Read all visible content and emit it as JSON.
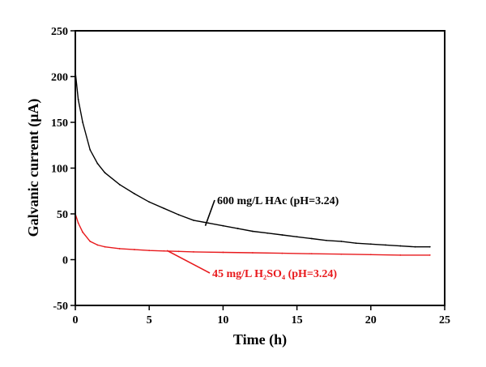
{
  "chart_data": {
    "type": "line",
    "title": "",
    "xlabel": "Time (h)",
    "ylabel": "Galvanic current (μA)",
    "xlim": [
      0,
      25
    ],
    "ylim": [
      -50,
      250
    ],
    "xticks": [
      0,
      5,
      10,
      15,
      20,
      25
    ],
    "yticks": [
      -50,
      0,
      50,
      100,
      150,
      200,
      250
    ],
    "grid": false,
    "series": [
      {
        "name": "600 mg/L HAc (pH=3.24)",
        "color": "#000000",
        "x": [
          0,
          0.2,
          0.5,
          1,
          1.5,
          2,
          3,
          4,
          5,
          6,
          7,
          8,
          9,
          10,
          11,
          12,
          13,
          14,
          15,
          16,
          17,
          18,
          19,
          20,
          21,
          22,
          23,
          24
        ],
        "y": [
          205,
          175,
          150,
          120,
          105,
          95,
          82,
          72,
          63,
          56,
          49,
          43,
          40,
          37,
          34,
          31,
          29,
          27,
          25,
          23,
          21,
          20,
          18,
          17,
          16,
          15,
          14,
          14
        ]
      },
      {
        "name": "45 mg/L H₂SO₄ (pH=3.24)",
        "color": "#e8191c",
        "x": [
          0,
          0.2,
          0.5,
          1,
          1.5,
          2,
          3,
          4,
          5,
          6,
          7,
          8,
          10,
          12,
          14,
          16,
          18,
          20,
          22,
          24
        ],
        "y": [
          50,
          40,
          30,
          20,
          16,
          14,
          12,
          11,
          10,
          9.5,
          9,
          8.5,
          8,
          7.5,
          7,
          6.5,
          6,
          5.5,
          5,
          5
        ]
      }
    ],
    "annotations": [
      {
        "text": "600 mg/L HAc (pH=3.24)",
        "series": 0,
        "color": "#000000"
      },
      {
        "text": "45 mg/L H₂SO₄ (pH=3.24)",
        "series": 1,
        "color": "#e8191c"
      }
    ]
  }
}
